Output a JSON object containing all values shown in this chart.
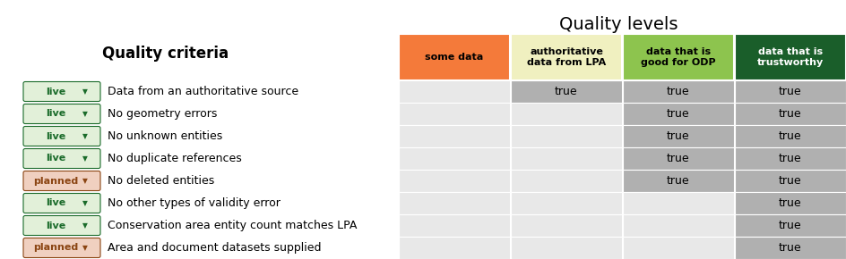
{
  "title": "Quality levels",
  "left_header": "Quality criteria",
  "col_headers": [
    "some data",
    "authoritative\ndata from LPA",
    "data that is\ngood for ODP",
    "data that is\ntrustworthy"
  ],
  "col_header_colors": [
    "#f47a3a",
    "#f0f0c0",
    "#8dc44e",
    "#1a5e2a"
  ],
  "col_header_text_colors": [
    "#000000",
    "#000000",
    "#000000",
    "#ffffff"
  ],
  "rows": [
    {
      "label": "live",
      "label_type": "live",
      "text": "Data from an authoritative source",
      "values": [
        false,
        true,
        true,
        true
      ]
    },
    {
      "label": "live",
      "label_type": "live",
      "text": "No geometry errors",
      "values": [
        false,
        false,
        true,
        true
      ]
    },
    {
      "label": "live",
      "label_type": "live",
      "text": "No unknown entities",
      "values": [
        false,
        false,
        true,
        true
      ]
    },
    {
      "label": "live",
      "label_type": "live",
      "text": "No duplicate references",
      "values": [
        false,
        false,
        true,
        true
      ]
    },
    {
      "label": "planned",
      "label_type": "planned",
      "text": "No deleted entities",
      "values": [
        false,
        false,
        true,
        true
      ]
    },
    {
      "label": "live",
      "label_type": "live",
      "text": "No other types of validity error",
      "values": [
        false,
        false,
        false,
        true
      ]
    },
    {
      "label": "live",
      "label_type": "live",
      "text": "Conservation area entity count matches LPA",
      "values": [
        false,
        false,
        false,
        true
      ]
    },
    {
      "label": "planned",
      "label_type": "planned",
      "text": "Area and document datasets supplied",
      "values": [
        false,
        false,
        false,
        true
      ]
    }
  ],
  "live_bg": "#e2f0d9",
  "live_text": "#1a6b2a",
  "planned_bg": "#f0d0c0",
  "planned_text": "#8b4513",
  "cell_true_bg": "#b0b0b0",
  "cell_false_bg": "#e8e8e8",
  "cell_true_text": "true",
  "fig_bg": "#ffffff",
  "title_fontsize": 14,
  "header_fontsize": 8,
  "row_fontsize": 9,
  "badge_fontsize": 8,
  "criteria_fontsize": 12
}
